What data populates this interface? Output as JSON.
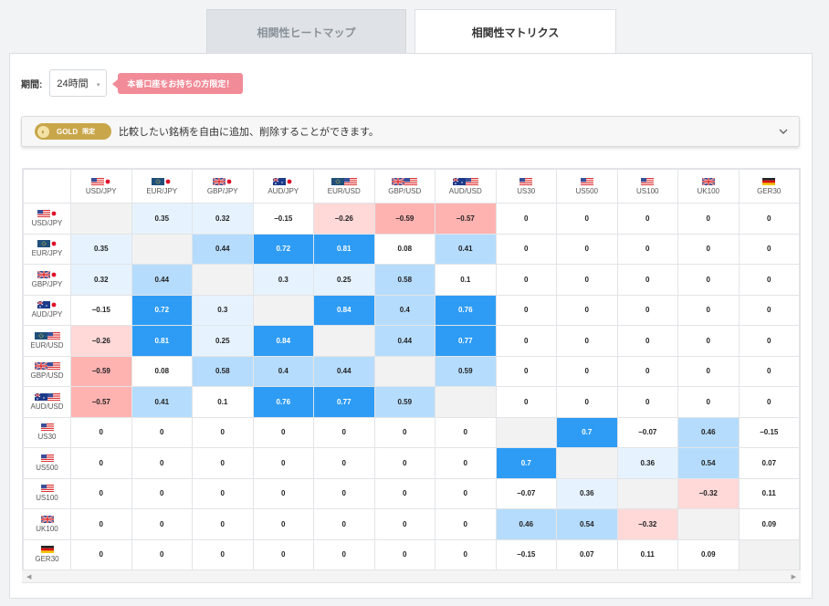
{
  "tabs": {
    "heatmap": "相関性ヒートマップ",
    "matrix": "相関性マトリクス"
  },
  "period": {
    "label": "期間:",
    "value": "24時間",
    "caret": "▾"
  },
  "promo": "本番口座をお持ちの方限定！",
  "gold": {
    "badge": "GOLD",
    "badge_sub": "限定",
    "text": "比較したい銘柄を自由に追加、削除することができます。"
  },
  "scroll": {
    "left": "◀",
    "right": "▶"
  },
  "symbols": [
    "USD/JPY",
    "EUR/JPY",
    "GBP/JPY",
    "AUD/JPY",
    "EUR/USD",
    "GBP/USD",
    "AUD/USD",
    "US30",
    "US500",
    "US100",
    "UK100",
    "GER30"
  ],
  "flags": [
    [
      "us",
      "jp"
    ],
    [
      "eu",
      "jp"
    ],
    [
      "gb",
      "jp"
    ],
    [
      "au",
      "jp"
    ],
    [
      "eu",
      "us"
    ],
    [
      "gb",
      "us"
    ],
    [
      "au",
      "us"
    ],
    [
      "us"
    ],
    [
      "us"
    ],
    [
      "us"
    ],
    [
      "gb"
    ],
    [
      "de"
    ]
  ],
  "matrix": [
    [
      null,
      "0.35",
      "0.32",
      "−0.15",
      "−0.26",
      "−0.59",
      "−0.57",
      "0",
      "0",
      "0",
      "0",
      "0"
    ],
    [
      "0.35",
      null,
      "0.44",
      "0.72",
      "0.81",
      "0.08",
      "0.41",
      "0",
      "0",
      "0",
      "0",
      "0"
    ],
    [
      "0.32",
      "0.44",
      null,
      "0.3",
      "0.25",
      "0.58",
      "0.1",
      "0",
      "0",
      "0",
      "0",
      "0"
    ],
    [
      "−0.15",
      "0.72",
      "0.3",
      null,
      "0.84",
      "0.4",
      "0.76",
      "0",
      "0",
      "0",
      "0",
      "0"
    ],
    [
      "−0.26",
      "0.81",
      "0.25",
      "0.84",
      null,
      "0.44",
      "0.77",
      "0",
      "0",
      "0",
      "0",
      "0"
    ],
    [
      "−0.59",
      "0.08",
      "0.58",
      "0.4",
      "0.44",
      null,
      "0.59",
      "0",
      "0",
      "0",
      "0",
      "0"
    ],
    [
      "−0.57",
      "0.41",
      "0.1",
      "0.76",
      "0.77",
      "0.59",
      null,
      "0",
      "0",
      "0",
      "0",
      "0"
    ],
    [
      "0",
      "0",
      "0",
      "0",
      "0",
      "0",
      "0",
      null,
      "0.7",
      "−0.07",
      "0.46",
      "−0.15"
    ],
    [
      "0",
      "0",
      "0",
      "0",
      "0",
      "0",
      "0",
      "0.7",
      null,
      "0.36",
      "0.54",
      "0.07"
    ],
    [
      "0",
      "0",
      "0",
      "0",
      "0",
      "0",
      "0",
      "−0.07",
      "0.36",
      null,
      "−0.32",
      "0.11"
    ],
    [
      "0",
      "0",
      "0",
      "0",
      "0",
      "0",
      "0",
      "0.46",
      "0.54",
      "−0.32",
      null,
      "0.09"
    ],
    [
      "0",
      "0",
      "0",
      "0",
      "0",
      "0",
      "0",
      "−0.15",
      "0.07",
      "0.11",
      "0.09",
      null
    ]
  ],
  "colors": {
    "strong_positive": "#2e9cf5",
    "positive": "#b5dcfc",
    "weak_positive": "#e6f3ff",
    "weak_negative": "#ffd8d8",
    "negative": "#ffb3b1",
    "diagonal": "#f2f2f2",
    "promo": "#f28b98",
    "gold": "#c9a64a"
  }
}
